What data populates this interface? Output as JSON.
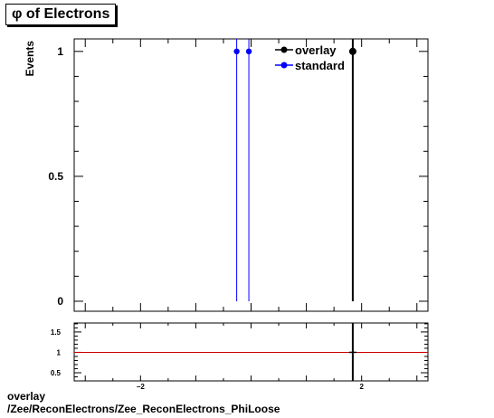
{
  "chart_data": [
    {
      "type": "scatter",
      "title": "φ of Electrons",
      "ylabel": "Events",
      "xlim": [
        -3.2,
        3.2
      ],
      "ylim": [
        -0.04,
        1.05
      ],
      "yticks": [
        {
          "value": 0,
          "label": "0"
        },
        {
          "value": 0.5,
          "label": "0.5"
        },
        {
          "value": 1,
          "label": "1"
        }
      ],
      "series": [
        {
          "name": "overlay",
          "color": "#000000",
          "x": [
            1.84
          ],
          "y": [
            1
          ]
        },
        {
          "name": "standard",
          "color": "#0000ff",
          "x": [
            -0.26,
            -0.04
          ],
          "y": [
            1,
            1
          ]
        }
      ],
      "legend": "top-right",
      "grid": false
    },
    {
      "type": "line",
      "xlim": [
        -3.2,
        3.2
      ],
      "ylim": [
        0.3,
        1.72
      ],
      "xticks": [
        {
          "value": -2,
          "label": "−2"
        },
        {
          "value": 2,
          "label": "2"
        }
      ],
      "yticks": [
        {
          "value": 0.5,
          "label": "0.5"
        },
        {
          "value": 1,
          "label": "1"
        },
        {
          "value": 1.5,
          "label": "1.5"
        }
      ],
      "reference_line": {
        "y": 1,
        "color": "#cc0000"
      },
      "points": [
        {
          "x": 1.84,
          "y": 1
        }
      ],
      "grid": false
    }
  ],
  "footer": {
    "line1": "overlay",
    "line2": "/Zee/ReconElectrons/Zee_ReconElectrons_PhiLoose"
  }
}
